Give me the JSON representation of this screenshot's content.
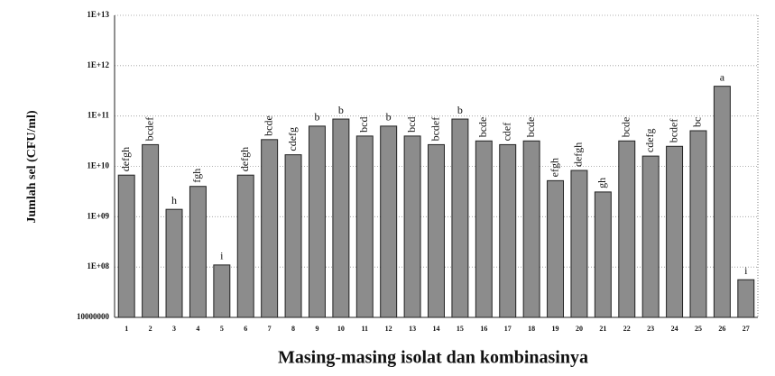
{
  "chart_data": {
    "type": "bar",
    "y_label": "Jumlah sel (CFU/ml)",
    "x_label": "Masing-masing isolat dan kombinasinya",
    "categories": [
      "1",
      "2",
      "3",
      "4",
      "5",
      "6",
      "7",
      "8",
      "9",
      "10",
      "11",
      "12",
      "13",
      "14",
      "15",
      "16",
      "17",
      "18",
      "19",
      "20",
      "21",
      "22",
      "23",
      "24",
      "25",
      "26",
      "27"
    ],
    "values": [
      6700000000,
      27000000000,
      1400000000,
      4000000000,
      110000000,
      6700000000,
      34000000000,
      17000000000,
      63000000000,
      87000000000,
      40000000000,
      63000000000,
      40000000000,
      27000000000,
      87000000000,
      32000000000,
      27000000000,
      32000000000,
      5200000000,
      8300000000,
      3100000000,
      32000000000,
      16000000000,
      25000000000,
      51000000000,
      390000000000,
      56000000
    ],
    "bar_labels": [
      "defgh",
      "bcdef",
      "h",
      "fgh",
      "i",
      "defgh",
      "bcde",
      "cdefg",
      "b",
      "b",
      "bcd",
      "b",
      "bcd",
      "bcdef",
      "b",
      "bcde",
      "cdef",
      "bcde",
      "efgh",
      "defgh",
      "gh",
      "bcde",
      "cdefg",
      "bcdef",
      "bc",
      "a",
      "i"
    ],
    "color": "#8c8c8c",
    "log_scale": true,
    "grid": true,
    "ylim": [
      10000000,
      10000000000000
    ],
    "yticks": [
      10000000,
      {
        "value": 100000000,
        "label": "1E+08"
      },
      {
        "value": 1000000000,
        "label": "1E+09"
      },
      {
        "value": 10000000000,
        "label": "1E+10"
      },
      {
        "value": 100000000000,
        "label": "1E+11"
      },
      {
        "value": 1000000000000,
        "label": "1E+12"
      },
      {
        "value": 10000000000000,
        "label": "1E+13"
      }
    ]
  }
}
